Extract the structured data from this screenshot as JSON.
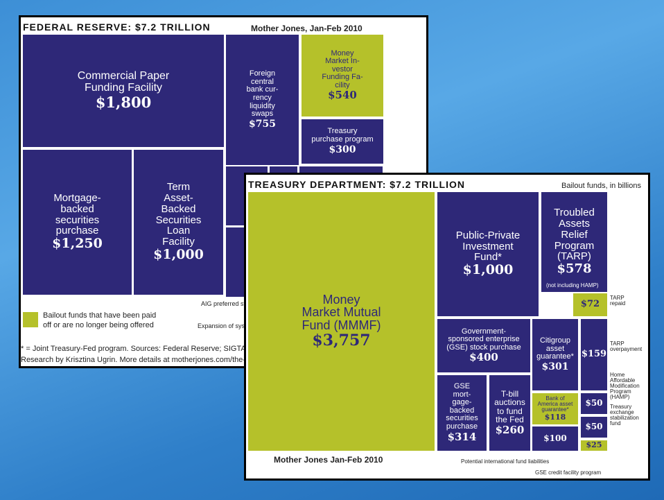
{
  "chart_data": [
    {
      "type": "treemap",
      "title": "FEDERAL RESERVE: $7.2 TRILLION",
      "source": "Mother Jones, Jan-Feb 2010",
      "categories": [
        "Commercial Paper\nFunding Facility",
        "Foreign\ncentral\nbank cur-\nrency\nliquidity\nswaps",
        "Money\nMarket In-\nvestor\nFunding Fa-\ncility",
        "Treasury\npurchase program",
        "Mortgage-\nbacked\nsecurities\npurchase",
        "Term\nAsset-\nBacked\nSecurities\nLoan\nFacility"
      ],
      "values": [
        1800,
        755,
        540,
        300,
        1250,
        1000
      ],
      "value_labels": [
        "$1,800",
        "$755",
        "$540",
        "$300",
        "$1,250",
        "$1,000"
      ],
      "colors": [
        "#2e2878",
        "#2e2878",
        "#b5c12a",
        "#2e2878",
        "#2e2878",
        "#2e2878"
      ],
      "legend": {
        "label": "Bailout funds that have been paid\noff or are no longer being offered",
        "color": "#b5c12a"
      },
      "annotations": [
        "AIG preferred stock",
        "Expansion of syste"
      ],
      "notes": [
        "* = Joint Treasury-Fed program. Sources: Federal Reserve; SIGTARP; Tre",
        "Research by Krisztina Ugrin. More details at motherjones.com/the-r"
      ]
    },
    {
      "type": "treemap",
      "title": "TREASURY DEPARTMENT: $7.2 TRILLION",
      "subtitle": "Bailout funds, in billions",
      "source": "Mother Jones Jan-Feb 2010",
      "categories": [
        "Money\nMarket Mutual\nFund (MMMF)",
        "Public-Private\nInvestment\nFund*",
        "Troubled\nAssets\nRelief\nProgram\n(TARP)",
        null,
        "Government-\nsponsored enterprise\n(GSE) stock purchase",
        "Citigroup\nasset\nguarantee*",
        null,
        "GSE\nmort-\ngage-\nbacked\nsecurities\npurchase",
        "T-bill\nauctions\nto fund\nthe Fed",
        "Bank of\nAmerica asset\nguarantee*",
        null,
        null,
        null,
        null
      ],
      "values": [
        3757,
        1000,
        578,
        72,
        400,
        301,
        159,
        314,
        260,
        118,
        100,
        50,
        50,
        25
      ],
      "value_labels": [
        "$3,757",
        "$1,000",
        "$578",
        "$72",
        "$400",
        "$301",
        "$159",
        "$314",
        "$260",
        "$118",
        "$100",
        "$50",
        "$50",
        "$25"
      ],
      "colors": [
        "#b5c12a",
        "#2e2878",
        "#2e2878",
        "#b5c12a",
        "#2e2878",
        "#2e2878",
        "#2e2878",
        "#2e2878",
        "#2e2878",
        "#b5c12a",
        "#2e2878",
        "#2e2878",
        "#2e2878",
        "#b5c12a"
      ],
      "annotations": [
        "(not including HAMP)",
        "TARP\nrepaid",
        "TARP\noverpayment",
        "Home\nAffordable\nModification\nProgram\n(HAMP)",
        "Treasury\nexchange\nstabilization\nfund",
        "Potential international fund liabilities",
        "GSE credit facility program"
      ]
    }
  ]
}
